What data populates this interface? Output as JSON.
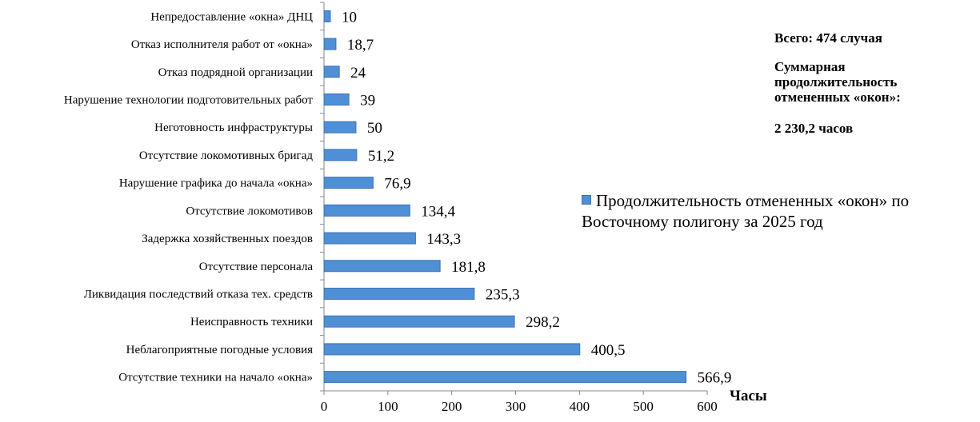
{
  "chart_data": {
    "type": "bar",
    "orientation": "horizontal",
    "categories": [
      "Непредоставление «окна» ДНЦ",
      "Отказ исполнителя работ от «окна»",
      "Отказ подрядной организации",
      "Нарушение технологии подготовительных работ",
      "Неготовность инфраструктуры",
      "Отсутствие локомотивных бригад",
      "Нарушение графика до начала «окна»",
      "Отсутствие локомотивов",
      "Задержка хозяйственных поездов",
      "Отсутствие персонала",
      "Ликвидация последствий отказа тех. средств",
      "Неисправность техники",
      "Неблагоприятные погодные условия",
      "Отсутствие техники на начало «окна»"
    ],
    "values": [
      10,
      18.7,
      24,
      39,
      50,
      51.2,
      76.9,
      134.4,
      143.3,
      181.8,
      235.3,
      298.2,
      400.5,
      566.9
    ],
    "value_labels": [
      "10",
      "18,7",
      "24",
      "39",
      "50",
      "51,2",
      "76,9",
      "134,4",
      "143,3",
      "181,8",
      "235,3",
      "298,2",
      "400,5",
      "566,9"
    ],
    "xlabel": "Часы",
    "xlim": [
      0,
      600
    ],
    "xticks": [
      0,
      100,
      200,
      300,
      400,
      500,
      600
    ],
    "grid": false,
    "legend": {
      "label": "Продолжительность отмененных «окон»  по Восточному полигону за 2025 год",
      "placement": "right"
    },
    "series_color": "#4f8fd6",
    "bar_border_color": "#3a73b5"
  },
  "info": {
    "total": "Всего: 474 случая",
    "duration_title": "Суммарная продолжительность отмененных «окон»:",
    "duration_value": "2 230,2 часов"
  }
}
